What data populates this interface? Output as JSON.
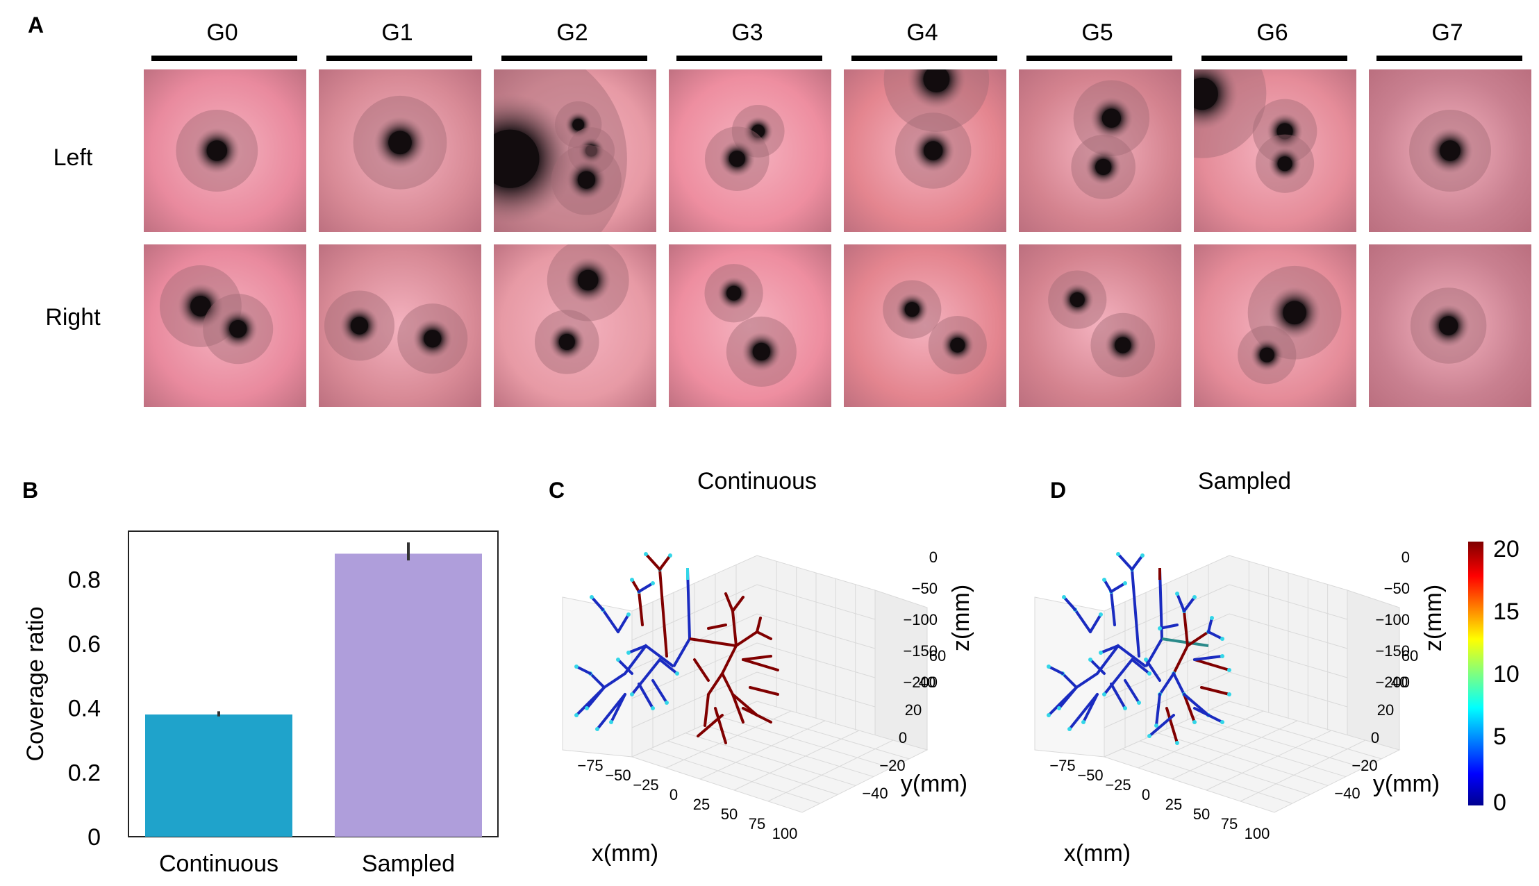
{
  "panels": {
    "a": "A",
    "b": "B",
    "c": "C",
    "d": "D"
  },
  "generations": [
    "G0",
    "G1",
    "G2",
    "G3",
    "G4",
    "G5",
    "G6",
    "G7"
  ],
  "rows": [
    "Left",
    "Right"
  ],
  "chart_data": [
    {
      "type": "bar",
      "panel": "B",
      "categories": [
        "Continuous",
        "Sampled"
      ],
      "values": [
        0.38,
        0.88
      ],
      "errors": [
        0.01,
        0.035
      ],
      "colors": [
        "#1fa3cb",
        "#af9edb"
      ],
      "ylabel": "Coverage ratio",
      "ylim": [
        0,
        0.95
      ],
      "yticks": [
        "0",
        "0.2",
        "0.4",
        "0.6",
        "0.8"
      ]
    },
    {
      "type": "3d-line",
      "panel": "C",
      "title": "Continuous",
      "xlabel": "x(mm)",
      "ylabel": "y(mm)",
      "zlabel": "z(mm)",
      "xticks": [
        "−75",
        "−50",
        "−25",
        "0",
        "25",
        "50",
        "75",
        "100"
      ],
      "yticks": [
        "−40",
        "−20",
        "0",
        "20",
        "40",
        "60"
      ],
      "zticks": [
        "0",
        "−50",
        "−100",
        "−150",
        "−200"
      ]
    },
    {
      "type": "3d-line",
      "panel": "D",
      "title": "Sampled",
      "xlabel": "x(mm)",
      "ylabel": "y(mm)",
      "zlabel": "z(mm)",
      "xticks": [
        "−75",
        "−50",
        "−25",
        "0",
        "25",
        "50",
        "75",
        "100"
      ],
      "yticks": [
        "−40",
        "−20",
        "0",
        "20",
        "40",
        "60"
      ],
      "zticks": [
        "0",
        "−50",
        "−100",
        "−150",
        "−200"
      ]
    }
  ],
  "colorbar": {
    "ticks": [
      "20",
      "15",
      "10",
      "5",
      "0"
    ],
    "range": [
      0,
      20
    ]
  },
  "colors": {
    "red": "#800000",
    "blue": "#1a2bc0",
    "cyan": "#33d6e8"
  }
}
